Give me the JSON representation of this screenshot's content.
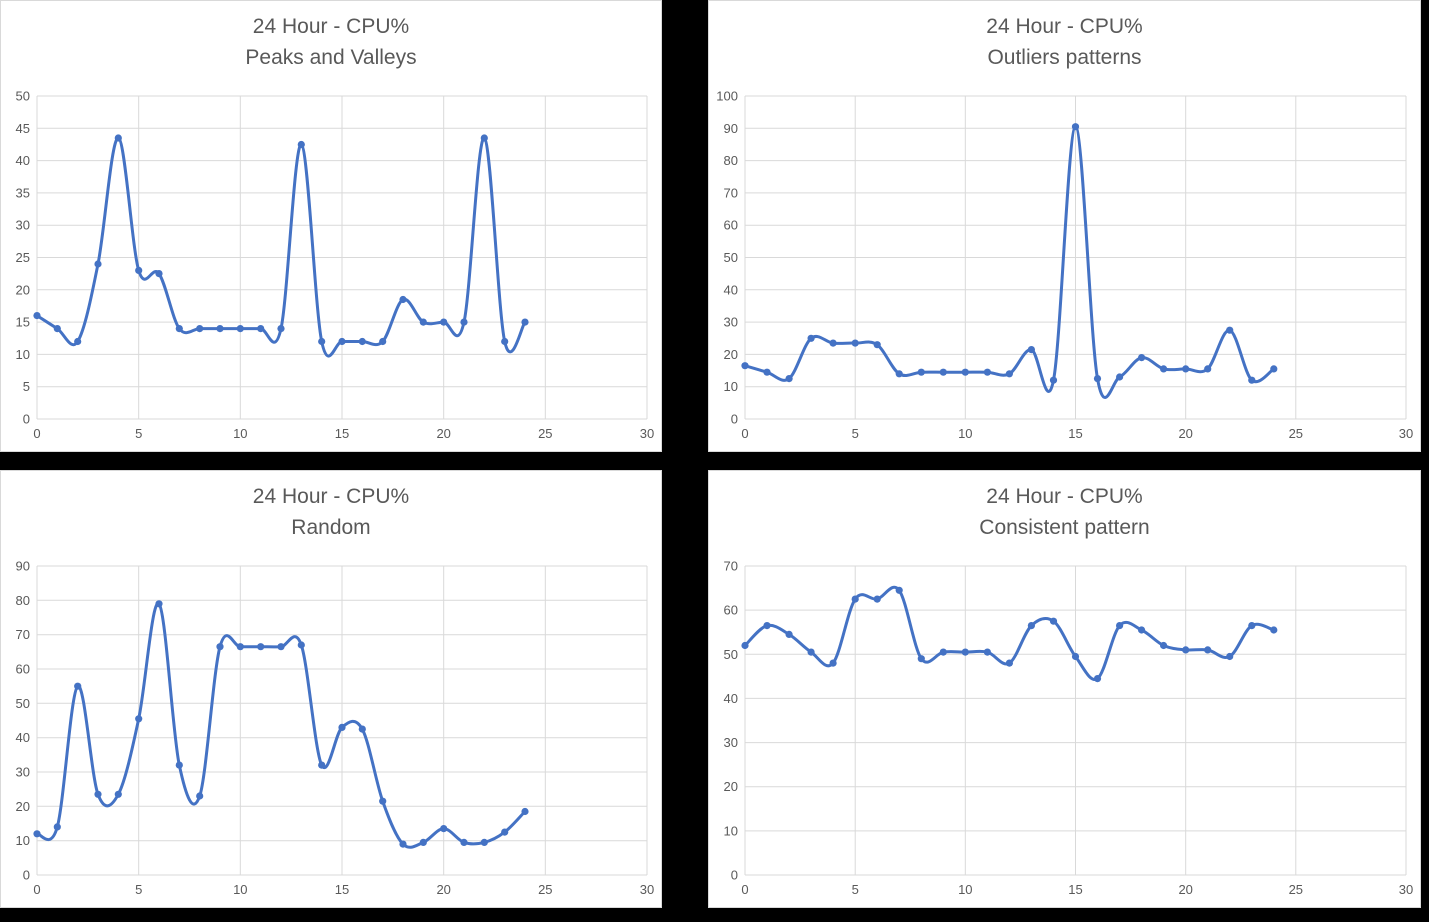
{
  "page": {
    "background": "#000000"
  },
  "panel_style": {
    "background": "#ffffff",
    "border": "#d9d9d9"
  },
  "chart_style": {
    "line_color": "#4472C4",
    "marker_color": "#4472C4",
    "grid_color": "#d9d9d9",
    "axis_text_color": "#595959",
    "title_color": "#595959"
  },
  "chart_data": [
    {
      "type": "line",
      "title": "24 Hour - CPU%",
      "subtitle": "Peaks and Valleys",
      "x": [
        0,
        1,
        2,
        3,
        4,
        5,
        6,
        7,
        8,
        9,
        10,
        11,
        12,
        13,
        14,
        15,
        16,
        17,
        18,
        19,
        20,
        21,
        22,
        23,
        24
      ],
      "values": [
        16,
        14,
        12,
        24,
        43.5,
        23,
        22.5,
        14,
        14,
        14,
        14,
        14,
        14,
        42.5,
        12,
        12,
        12,
        12,
        18.5,
        15,
        15,
        15,
        43.5,
        12,
        15
      ],
      "xlim": [
        0,
        30
      ],
      "x_ticks": [
        0,
        5,
        10,
        15,
        20,
        25,
        30
      ],
      "ylim": [
        0,
        50
      ],
      "y_tick_step": 5,
      "grid": true,
      "smooth": true,
      "markers": true,
      "legend": "none",
      "xlabel": "",
      "ylabel": ""
    },
    {
      "type": "line",
      "title": "24 Hour - CPU%",
      "subtitle": "Outliers patterns",
      "x": [
        0,
        1,
        2,
        3,
        4,
        5,
        6,
        7,
        8,
        9,
        10,
        11,
        12,
        13,
        14,
        15,
        16,
        17,
        18,
        19,
        20,
        21,
        22,
        23,
        24
      ],
      "values": [
        16.5,
        14.5,
        12.5,
        25,
        23.5,
        23.5,
        23,
        14,
        14.5,
        14.5,
        14.5,
        14.5,
        14,
        21.5,
        12,
        90.5,
        12.5,
        13,
        19,
        15.5,
        15.5,
        15.5,
        27.5,
        12,
        15.5
      ],
      "xlim": [
        0,
        30
      ],
      "x_ticks": [
        0,
        5,
        10,
        15,
        20,
        25,
        30
      ],
      "ylim": [
        0,
        100
      ],
      "y_tick_step": 10,
      "grid": true,
      "smooth": true,
      "markers": true,
      "legend": "none",
      "xlabel": "",
      "ylabel": ""
    },
    {
      "type": "line",
      "title": "24 Hour - CPU%",
      "subtitle": "Random",
      "x": [
        0,
        1,
        2,
        3,
        4,
        5,
        6,
        7,
        8,
        9,
        10,
        11,
        12,
        13,
        14,
        15,
        16,
        17,
        18,
        19,
        20,
        21,
        22,
        23,
        24
      ],
      "values": [
        12,
        14,
        55,
        23.5,
        23.5,
        45.5,
        79,
        32,
        23,
        66.5,
        66.5,
        66.5,
        66.5,
        67,
        32,
        43,
        42.5,
        21.5,
        9,
        9.5,
        13.5,
        9.5,
        9.5,
        12.5,
        18.5
      ],
      "xlim": [
        0,
        30
      ],
      "x_ticks": [
        0,
        5,
        10,
        15,
        20,
        25,
        30
      ],
      "ylim": [
        0,
        90
      ],
      "y_tick_step": 10,
      "grid": true,
      "smooth": true,
      "markers": true,
      "legend": "none",
      "xlabel": "",
      "ylabel": ""
    },
    {
      "type": "line",
      "title": "24 Hour - CPU%",
      "subtitle": "Consistent pattern",
      "x": [
        0,
        1,
        2,
        3,
        4,
        5,
        6,
        7,
        8,
        9,
        10,
        11,
        12,
        13,
        14,
        15,
        16,
        17,
        18,
        19,
        20,
        21,
        22,
        23,
        24
      ],
      "values": [
        52,
        56.5,
        54.5,
        50.5,
        48,
        62.5,
        62.5,
        64.5,
        49,
        50.5,
        50.5,
        50.5,
        48,
        56.5,
        57.5,
        49.5,
        44.5,
        56.5,
        55.5,
        52,
        51,
        51,
        49.5,
        56.5,
        55.5
      ],
      "xlim": [
        0,
        30
      ],
      "x_ticks": [
        0,
        5,
        10,
        15,
        20,
        25,
        30
      ],
      "ylim": [
        0,
        70
      ],
      "y_tick_step": 10,
      "grid": true,
      "smooth": true,
      "markers": true,
      "legend": "none",
      "xlabel": "",
      "ylabel": ""
    }
  ]
}
